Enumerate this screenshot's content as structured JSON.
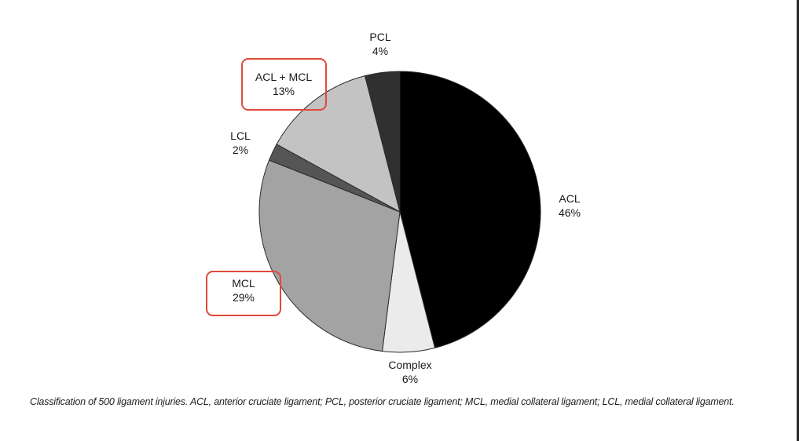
{
  "chart_data": {
    "type": "pie",
    "title": "",
    "slices": [
      {
        "label": "ACL",
        "value": 46,
        "value_label": "46%",
        "color": "#000000"
      },
      {
        "label": "Complex",
        "value": 6,
        "value_label": "6%",
        "color": "#ebebeb"
      },
      {
        "label": "MCL",
        "value": 29,
        "value_label": "29%",
        "color": "#a3a3a3"
      },
      {
        "label": "LCL",
        "value": 2,
        "value_label": "2%",
        "color": "#555555"
      },
      {
        "label": "ACL + MCL",
        "value": 13,
        "value_label": "13%",
        "color": "#c3c3c3"
      },
      {
        "label": "PCL",
        "value": 4,
        "value_label": "4%",
        "color": "#303030"
      }
    ],
    "highlighted": [
      "ACL + MCL",
      "MCL"
    ],
    "highlight_color": "#e04a3a",
    "start": "12 o'clock",
    "direction": "clockwise"
  },
  "caption": "Classification of 500 ligament injuries. ACL, anterior cruciate ligament; PCL, posterior cruciate ligament; MCL, medial collateral ligament; LCL, medial collateral ligament."
}
